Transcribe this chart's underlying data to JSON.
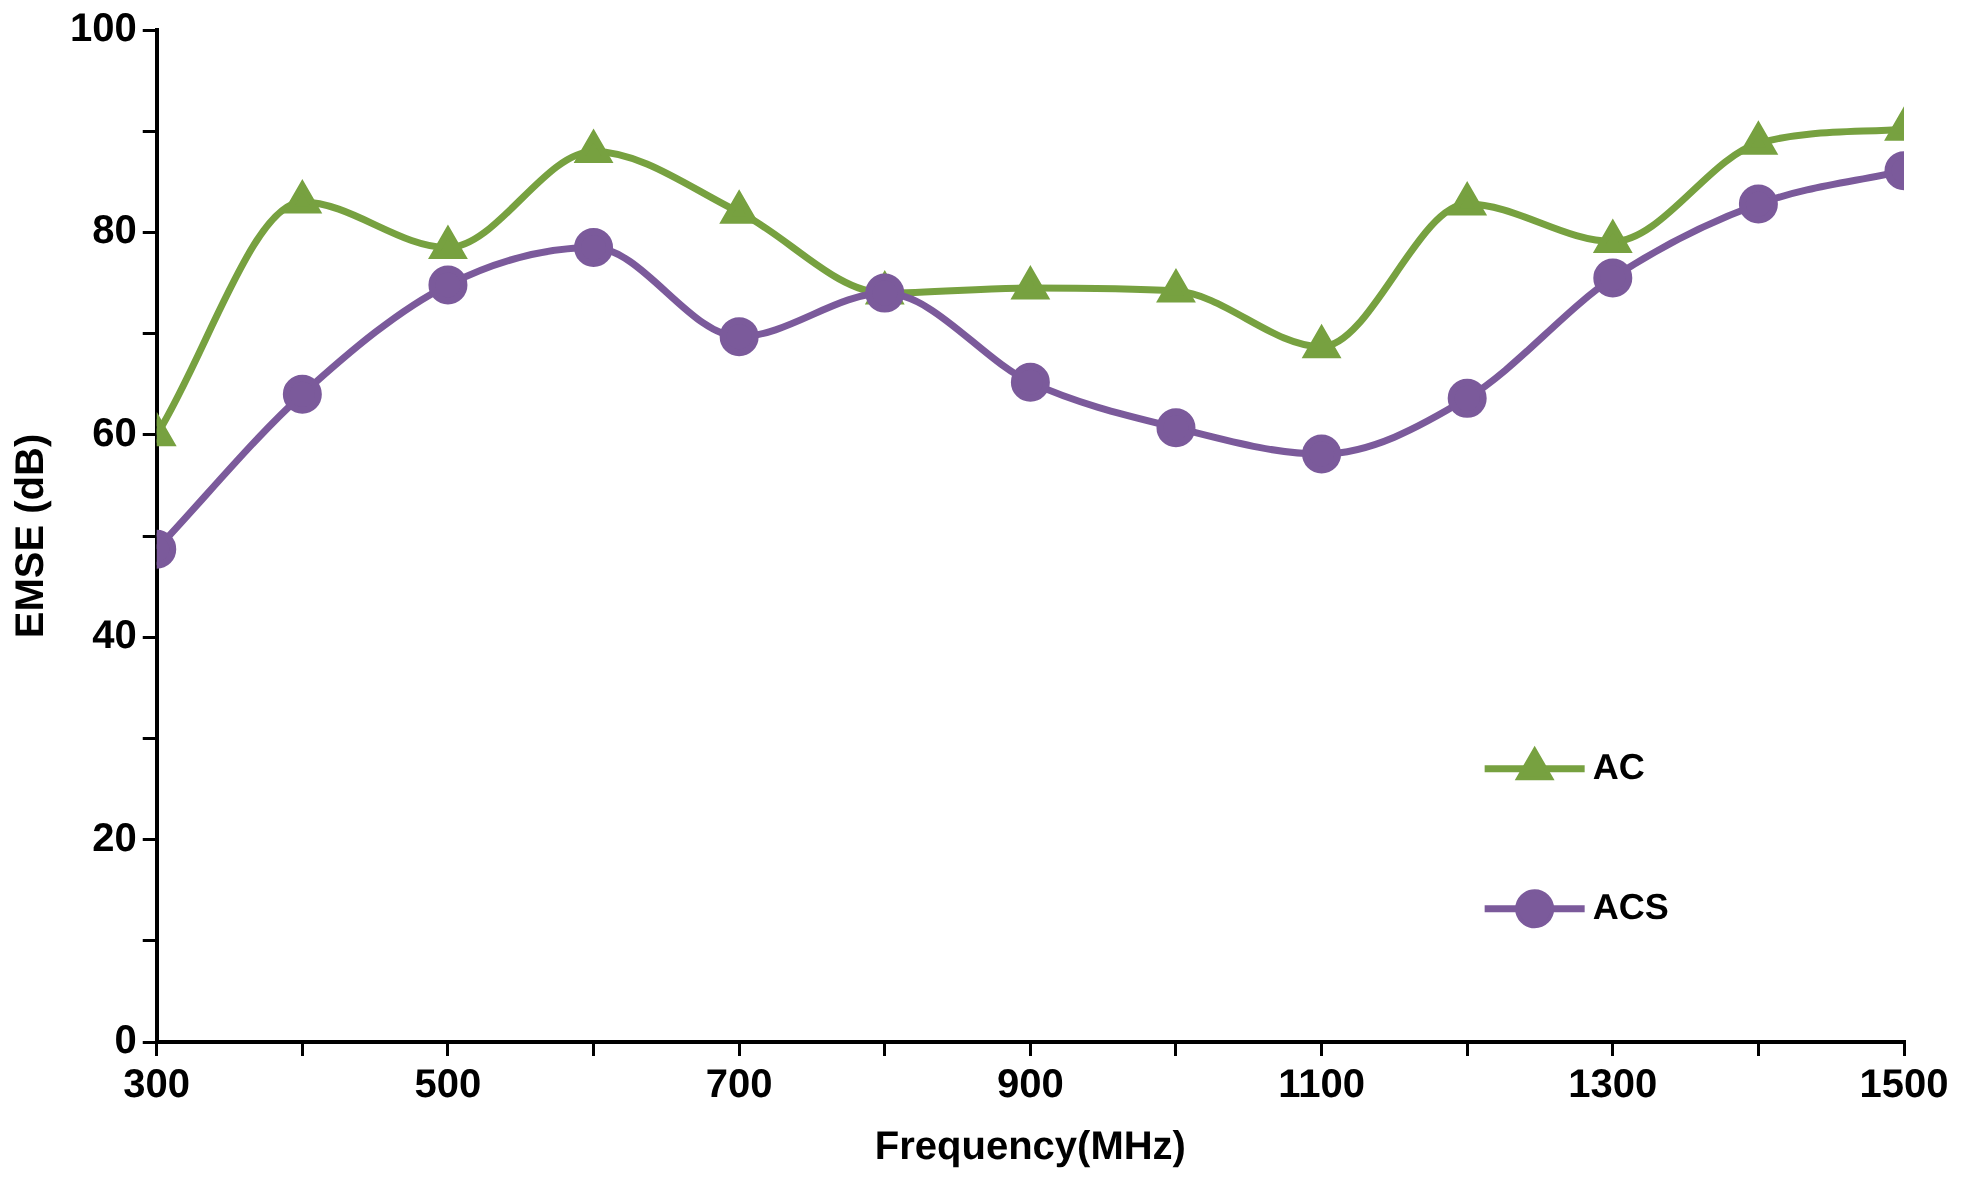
{
  "chart_data": {
    "type": "line",
    "xlabel": "Frequency(MHz)",
    "ylabel": "EMSE (dB)",
    "x": [
      300,
      400,
      500,
      600,
      700,
      800,
      900,
      1000,
      1100,
      1200,
      1300,
      1400,
      1500
    ],
    "series": [
      {
        "name": "AC",
        "color": "#77a140",
        "marker": "triangle",
        "values": [
          60,
          83,
          78.5,
          88,
          82,
          74,
          74.5,
          74.2,
          68.7,
          82.8,
          79.1,
          88.8,
          90.2
        ]
      },
      {
        "name": "ACS",
        "color": "#7b5a9b",
        "marker": "circle",
        "values": [
          48.7,
          64,
          74.8,
          78.5,
          69.7,
          74,
          65.2,
          60.7,
          58.1,
          63.6,
          75.5,
          82.8,
          86.1
        ]
      }
    ],
    "xlim": [
      300,
      1500
    ],
    "xticks": [
      300,
      {
        "value": 400,
        "label": null
      },
      500,
      {
        "value": 600,
        "label": null
      },
      700,
      {
        "value": 800,
        "label": null
      },
      900,
      {
        "value": 1000,
        "label": null
      },
      1100,
      {
        "value": 1200,
        "label": null
      },
      1300,
      {
        "value": 1400,
        "label": null
      },
      1500
    ],
    "ylim": [
      0,
      100
    ],
    "yticks": [
      0,
      {
        "value": 10,
        "label": null
      },
      20,
      {
        "value": 30,
        "label": null
      },
      40,
      {
        "value": 50,
        "label": null
      },
      60,
      {
        "value": 70,
        "label": null
      },
      80,
      {
        "value": 90,
        "label": null
      },
      100
    ],
    "grid": false,
    "legend": "right",
    "line_style": "solid"
  }
}
